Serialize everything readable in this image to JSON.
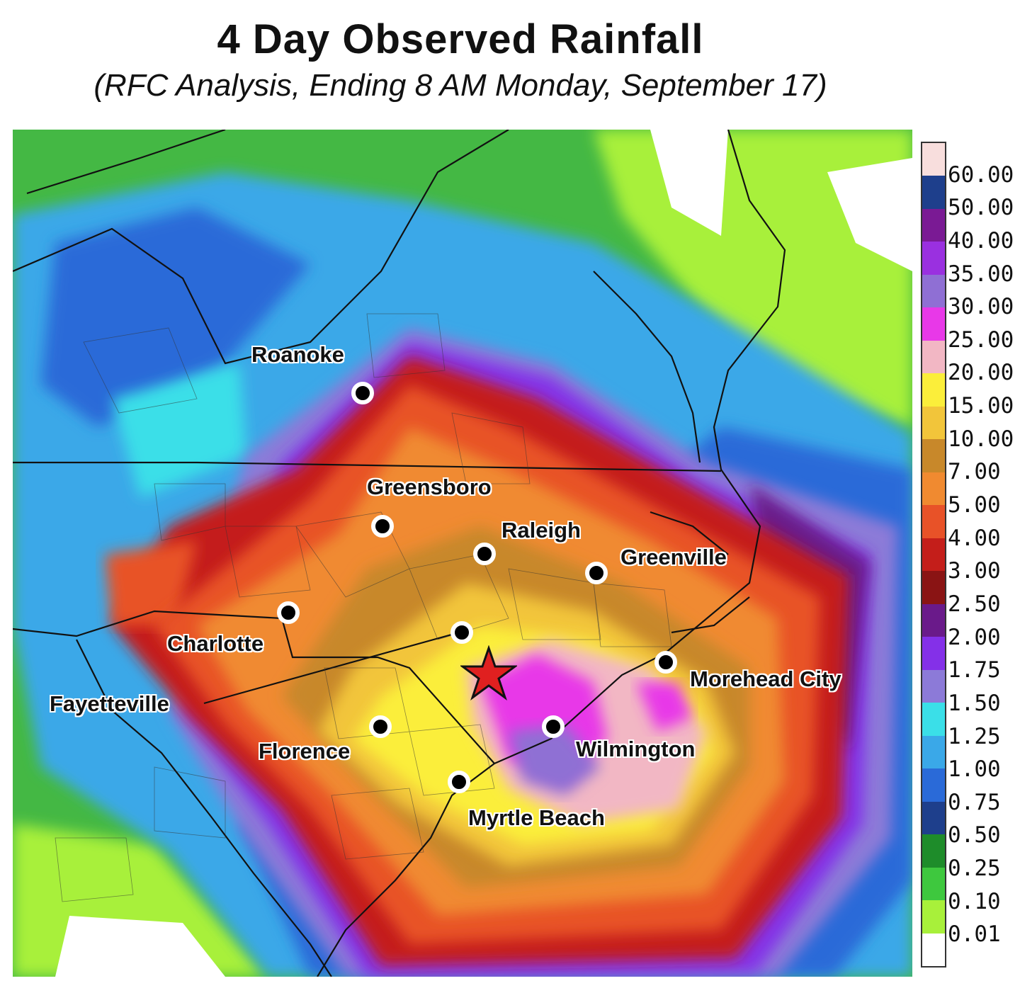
{
  "title": "4 Day Observed Rainfall",
  "subtitle": "(RFC Analysis, Ending 8 AM Monday, September 17)",
  "cities": [
    {
      "name": "Roanoke"
    },
    {
      "name": "Greensboro"
    },
    {
      "name": "Raleigh"
    },
    {
      "name": "Greenville"
    },
    {
      "name": "Charlotte"
    },
    {
      "name": "Fayetteville"
    },
    {
      "name": "Morehead City"
    },
    {
      "name": "Florence"
    },
    {
      "name": "Wilmington"
    },
    {
      "name": "Myrtle Beach"
    }
  ],
  "landfall_marker": "star-icon",
  "legend": [
    {
      "label": "60.00",
      "color": "#f8dedd"
    },
    {
      "label": "50.00",
      "color": "#1e3f8c"
    },
    {
      "label": "40.00",
      "color": "#7a1a94"
    },
    {
      "label": "35.00",
      "color": "#9a30e0"
    },
    {
      "label": "30.00",
      "color": "#8f6fd4"
    },
    {
      "label": "25.00",
      "color": "#e838e8"
    },
    {
      "label": "20.00",
      "color": "#f2b7c4"
    },
    {
      "label": "15.00",
      "color": "#fbee3a"
    },
    {
      "label": "10.00",
      "color": "#f2c53a"
    },
    {
      "label": "7.00",
      "color": "#c8882a"
    },
    {
      "label": "5.00",
      "color": "#f08a30"
    },
    {
      "label": "4.00",
      "color": "#e85228"
    },
    {
      "label": "3.00",
      "color": "#c41e1a"
    },
    {
      "label": "2.50",
      "color": "#8a1414"
    },
    {
      "label": "2.00",
      "color": "#6a1a8a"
    },
    {
      "label": "1.75",
      "color": "#8430e8"
    },
    {
      "label": "1.50",
      "color": "#8c7ad8"
    },
    {
      "label": "1.25",
      "color": "#3adfe8"
    },
    {
      "label": "1.00",
      "color": "#3aa8e8"
    },
    {
      "label": "0.75",
      "color": "#2a6ad8"
    },
    {
      "label": "0.50",
      "color": "#1e3f8c"
    },
    {
      "label": "0.25",
      "color": "#1e8c2a"
    },
    {
      "label": "0.10",
      "color": "#3ec83e"
    },
    {
      "label": "0.01",
      "color": "#a8f03a"
    },
    {
      "label": "",
      "color": "#ffffff"
    }
  ]
}
